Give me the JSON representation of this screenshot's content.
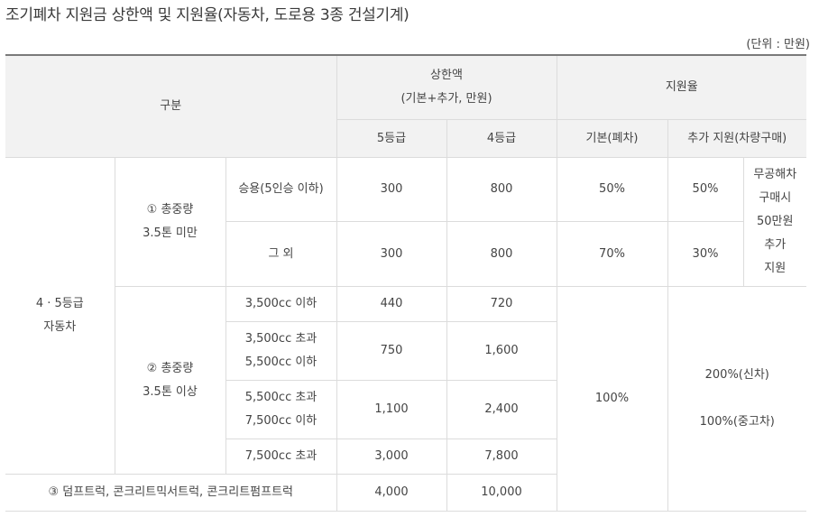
{
  "title": "조기폐차 지원금 상한액 및 지원율(자동차, 도로용 3종 건설기계)",
  "unit": "(단위 : 만원)",
  "header": {
    "category": "구분",
    "cap_line1": "상한액",
    "cap_line2": "(기본+추가, 만원)",
    "rate": "지원율",
    "grade5": "5등급",
    "grade4": "4등급",
    "basic": "기본(폐차)",
    "additional": "추가 지원(차량구매)"
  },
  "group": {
    "line1": "4 · 5등급",
    "line2": "자동차"
  },
  "sub1": {
    "line1": "① 총중량",
    "line2": "3.5톤 미만"
  },
  "sub2": {
    "line1": "② 총중량",
    "line2": "3.5톤 이상"
  },
  "rows": [
    {
      "label1": "승용(5인승 이하)",
      "label2": "",
      "g5": "300",
      "g4": "800",
      "basic": "50%",
      "add": "50%"
    },
    {
      "label1": "그 외",
      "label2": "",
      "g5": "300",
      "g4": "800",
      "basic": "70%",
      "add": "30%"
    },
    {
      "label1": "3,500cc 이하",
      "label2": "",
      "g5": "440",
      "g4": "720"
    },
    {
      "label1": "3,500cc 초과",
      "label2": "5,500cc 이하",
      "g5": "750",
      "g4": "1,600"
    },
    {
      "label1": "5,500cc 초과",
      "label2": "7,500cc 이하",
      "g5": "1,100",
      "g4": "2,400"
    },
    {
      "label1": "7,500cc 초과",
      "label2": "",
      "g5": "3,000",
      "g4": "7,800"
    }
  ],
  "extra_note": [
    "무공해차",
    "구매시",
    "50만원",
    "추가",
    "지원"
  ],
  "big_basic": "100%",
  "big_add_line1": "200%(신차)",
  "big_add_line2": "100%(중고차)",
  "trucks": {
    "label": "③ 덤프트럭, 콘크리트믹서트럭, 콘크리트펌프트럭",
    "g5": "4,000",
    "g4": "10,000"
  }
}
